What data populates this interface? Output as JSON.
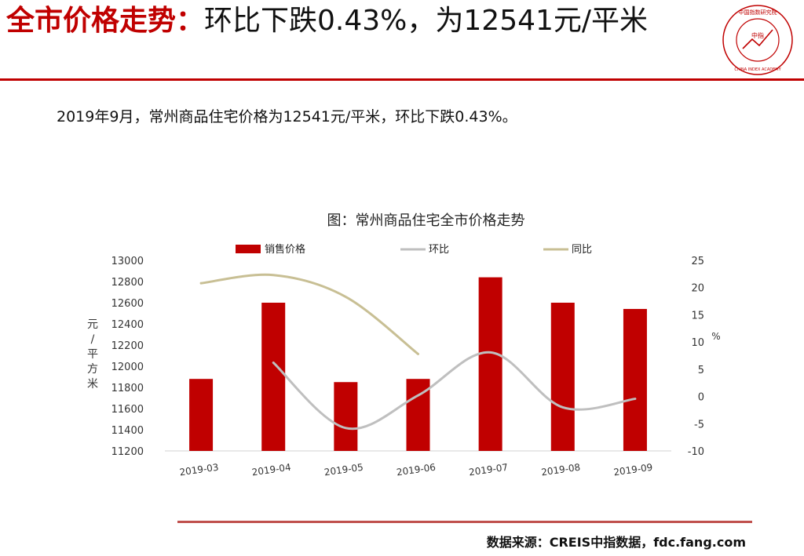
{
  "header": {
    "title_red": "全市价格走势：",
    "title_black": "环比下跌0.43%，为12541元/平米",
    "logo_text_cn": "中国指数研究院",
    "logo_text_en": "CHINA INDEX ACADEMY",
    "logo_center": "中指"
  },
  "summary": "2019年9月，常州商品住宅价格为12541元/平米，环比下跌0.43%。",
  "source": "数据来源：CREIS中指数据，fdc.fang.com",
  "colors": {
    "accent": "#c00000",
    "bar": "#c00000",
    "mom_line": "#bfbfbf",
    "yoy_line": "#c8bf94",
    "rule": "#c0504d"
  },
  "chart_data": {
    "type": "bar",
    "title": "图：常州商品住宅全市价格走势",
    "categories": [
      "2019-03",
      "2019-04",
      "2019-05",
      "2019-06",
      "2019-07",
      "2019-08",
      "2019-09"
    ],
    "series": [
      {
        "name": "销售价格",
        "type": "bar",
        "axis": "left",
        "values": [
          11880,
          12600,
          11850,
          11880,
          12840,
          12600,
          12541
        ]
      },
      {
        "name": "环比",
        "type": "line",
        "axis": "right",
        "values": [
          null,
          6.2,
          -5.8,
          0.2,
          8.1,
          -2.0,
          -0.43
        ]
      },
      {
        "name": "同比",
        "type": "line",
        "axis": "right",
        "values": [
          20.8,
          22.3,
          18.3,
          7.8,
          null,
          null,
          null
        ]
      }
    ],
    "ylabel_left": "元/平方米",
    "ylabel_right": "%",
    "ylim_left": [
      11200,
      13000
    ],
    "yticks_left": [
      11200,
      11400,
      11600,
      11800,
      12000,
      12200,
      12400,
      12600,
      12800,
      13000
    ],
    "ylim_right": [
      -10,
      25
    ],
    "yticks_right": [
      -10,
      -5,
      0,
      5,
      10,
      15,
      20,
      25
    ],
    "legend": "top",
    "grid": false
  }
}
